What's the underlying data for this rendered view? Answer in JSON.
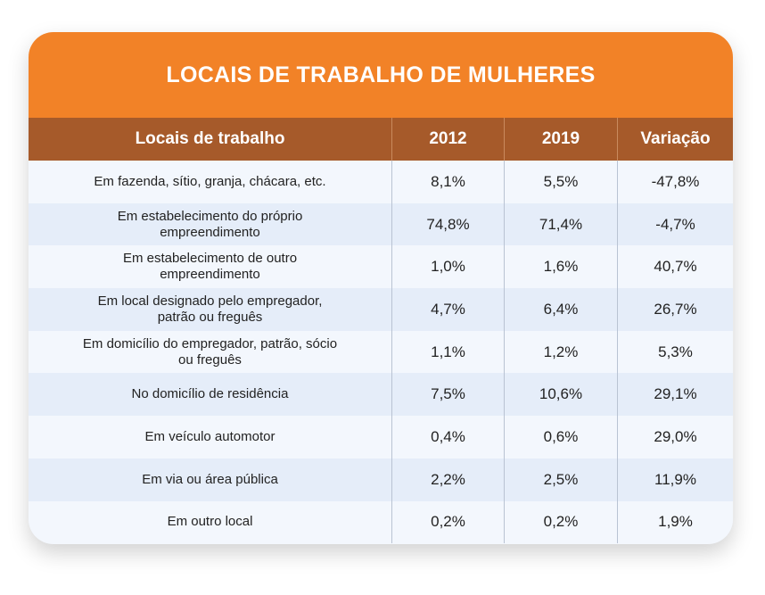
{
  "header": {
    "title": "LOCAIS DE TRABALHO DE MULHERES"
  },
  "table": {
    "columns": [
      "Locais de trabalho",
      "2012",
      "2019",
      "Variação"
    ],
    "rows": [
      [
        [
          "Em fazenda, sítio, granja, chácara, etc."
        ],
        "8,1%",
        "5,5%",
        "-47,8%"
      ],
      [
        [
          "Em estabelecimento do próprio",
          "empreendimento"
        ],
        "74,8%",
        "71,4%",
        "-4,7%"
      ],
      [
        [
          "Em estabelecimento de outro",
          "empreendimento"
        ],
        "1,0%",
        "1,6%",
        "40,7%"
      ],
      [
        [
          "Em local designado pelo empregador,",
          "patrão ou freguês"
        ],
        "4,7%",
        "6,4%",
        "26,7%"
      ],
      [
        [
          "Em domicílio do empregador, patrão, sócio",
          "ou freguês"
        ],
        "1,1%",
        "1,2%",
        "5,3%"
      ],
      [
        [
          "No domicílio de residência"
        ],
        "7,5%",
        "10,6%",
        "29,1%"
      ],
      [
        [
          "Em veículo automotor"
        ],
        "0,4%",
        "0,6%",
        "29,0%"
      ],
      [
        [
          "Em via ou área pública"
        ],
        "2,2%",
        "2,5%",
        "11,9%"
      ],
      [
        [
          "Em outro local"
        ],
        "0,2%",
        "0,2%",
        "1,9%"
      ]
    ]
  }
}
